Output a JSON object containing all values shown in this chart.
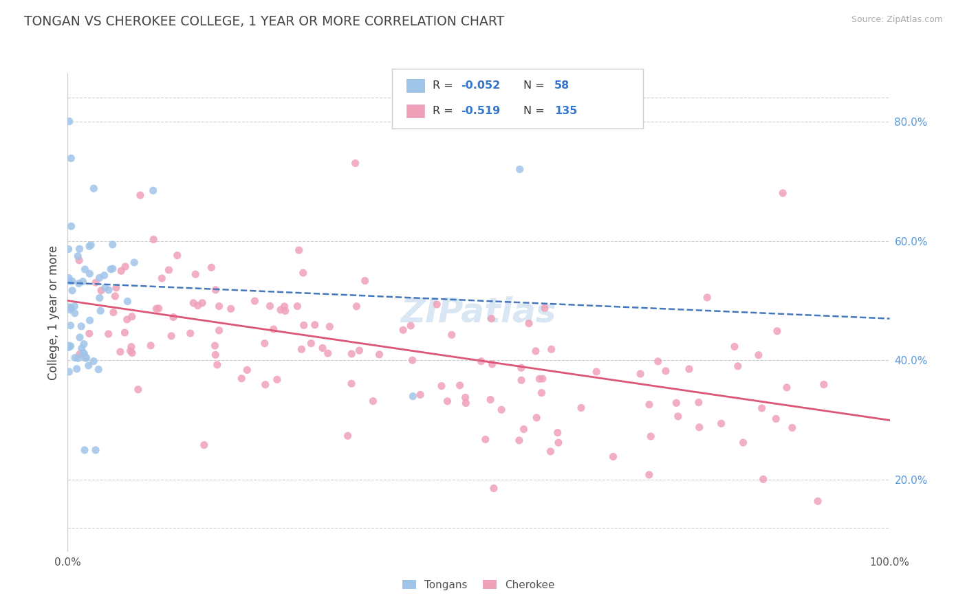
{
  "title": "TONGAN VS CHEROKEE COLLEGE, 1 YEAR OR MORE CORRELATION CHART",
  "source": "Source: ZipAtlas.com",
  "ylabel": "College, 1 year or more",
  "ytick_vals": [
    0.2,
    0.4,
    0.6,
    0.8
  ],
  "ytick_labels": [
    "20.0%",
    "40.0%",
    "60.0%",
    "80.0%"
  ],
  "xtick_vals": [
    0.0,
    1.0
  ],
  "xtick_labels": [
    "0.0%",
    "100.0%"
  ],
  "legend_r1": "-0.052",
  "legend_n1": "58",
  "legend_r2": "-0.519",
  "legend_n2": "135",
  "legend_label1": "Tongans",
  "legend_label2": "Cherokee",
  "color_tongan": "#a0c4e8",
  "color_cherokee": "#f0a0b8",
  "color_tongan_line": "#4477bb",
  "color_cherokee_line": "#dd5577",
  "color_title": "#444444",
  "color_source": "#aaaaaa",
  "color_watermark": "#cce0f0",
  "color_grid": "#cccccc",
  "color_tick_y": "#5599dd",
  "color_legend_text": "#333333",
  "color_rn": "#3377cc",
  "xlim": [
    0.0,
    1.0
  ],
  "ylim": [
    0.08,
    0.88
  ],
  "seed": 17,
  "N_tongan": 58,
  "N_cherokee": 135,
  "R_tongan": -0.052,
  "R_cherokee": -0.519,
  "tongan_line_y0": 0.53,
  "tongan_line_y1": 0.47,
  "cherokee_line_y0": 0.5,
  "cherokee_line_y1": 0.3
}
